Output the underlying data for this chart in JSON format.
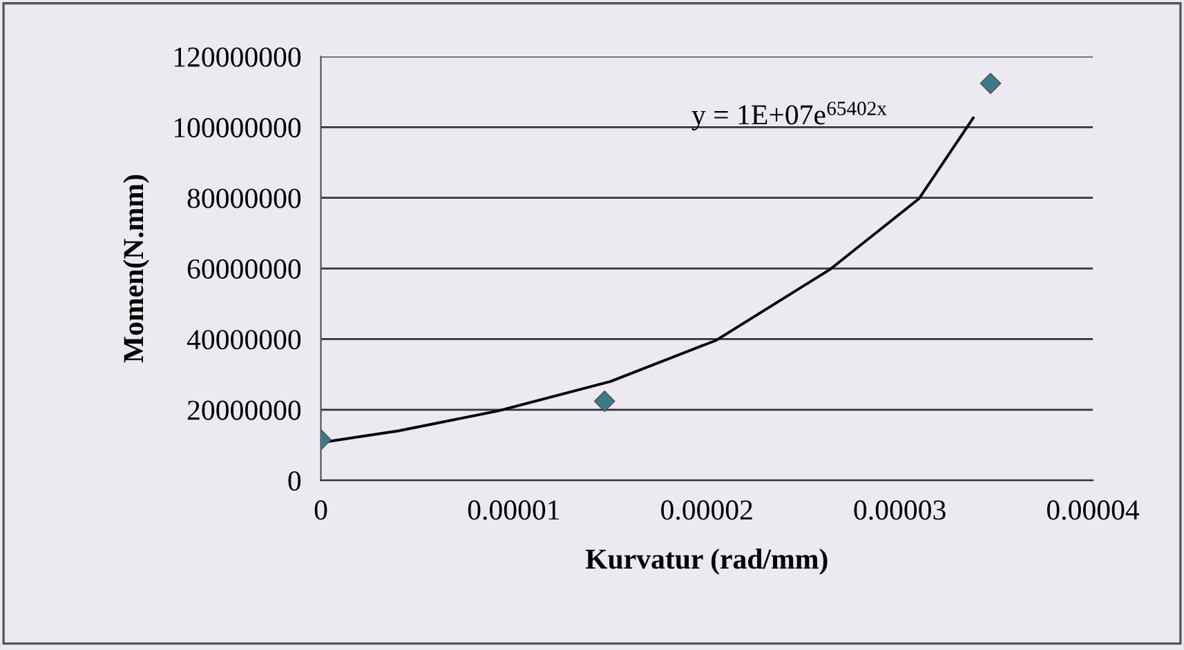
{
  "chart_data": {
    "type": "scatter",
    "xlabel": "Kurvatur (rad/mm)",
    "ylabel": "Momen(N.mm)",
    "series": [
      {
        "color": "#3c7a8a",
        "marker": "diamond",
        "x": [
          0,
          1.47e-05,
          3.47e-05
        ],
        "values": [
          11500000,
          22400000,
          112400000
        ]
      },
      {
        "type": "line",
        "color": "#000000",
        "marker": "none",
        "line_style": "solid",
        "x": [
          0,
          4e-06,
          9.2e-06,
          1.5e-05,
          2.05e-05,
          2.64e-05,
          3.1e-05,
          3.38e-05
        ],
        "values": [
          10700000,
          14000000,
          19700000,
          28000000,
          39700000,
          59800000,
          79800000,
          102600000
        ]
      }
    ],
    "annotations": [
      "y = 1E+07e$^{65402x}$"
    ],
    "xlim": [
      0,
      4e-05
    ],
    "xticks": [
      0,
      {
        "value": 1e-05,
        "label": "0.00001"
      },
      {
        "value": 2e-05,
        "label": "0.00002"
      },
      {
        "value": 3e-05,
        "label": "0.00003"
      },
      {
        "value": 4e-05,
        "label": "0.00004"
      }
    ],
    "ylim": [
      0,
      120000000
    ],
    "yticks": [
      0,
      20000000,
      40000000,
      60000000,
      80000000,
      100000000,
      120000000
    ],
    "grid": "y"
  }
}
